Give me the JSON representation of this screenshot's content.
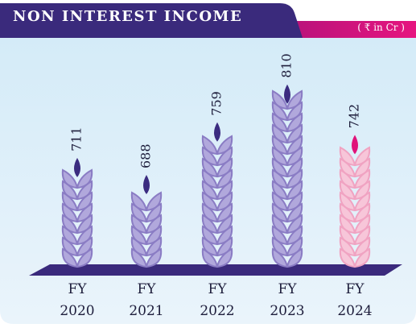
{
  "title": "NON INTEREST INCOME",
  "unit": "( ₹ in Cr )",
  "chart_data": {
    "type": "bar",
    "categories": [
      "FY 2020",
      "FY 2021",
      "FY 2022",
      "FY 2023",
      "FY 2024"
    ],
    "values": [
      711,
      688,
      759,
      810,
      742
    ],
    "colors": [
      "#3b2c80",
      "#3b2c80",
      "#3b2c80",
      "#3b2c80",
      "#e0137a"
    ],
    "ylim": [
      575,
      850
    ]
  }
}
